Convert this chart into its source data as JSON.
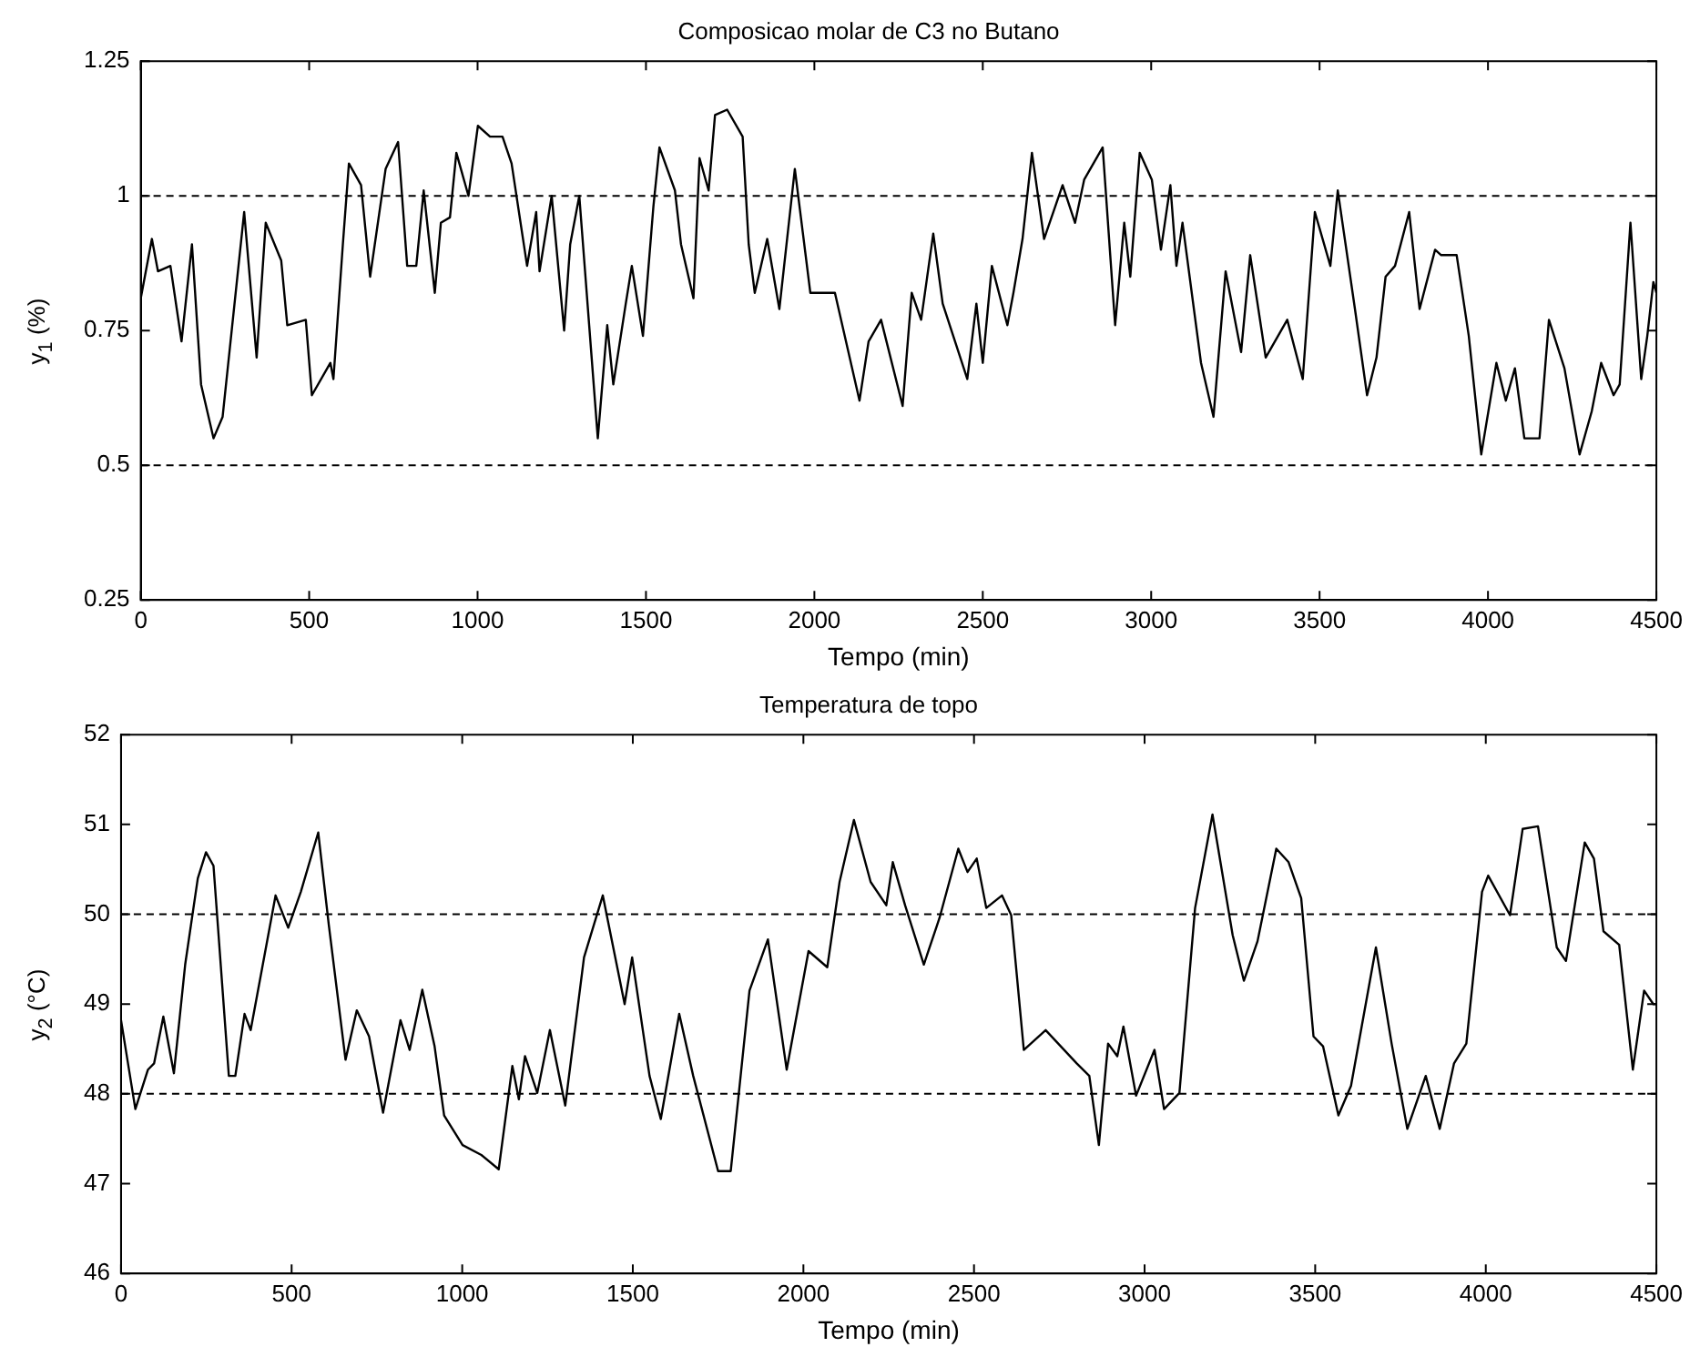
{
  "chart_data": [
    {
      "type": "line",
      "title": "Composicao molar de C3 no Butano",
      "xlabel": "Tempo (min)",
      "ylabel": "y$_{1}$ (%)",
      "xlim": [
        0,
        4500
      ],
      "xticks": [
        0,
        500,
        1000,
        1500,
        2000,
        2500,
        3000,
        3500,
        4000,
        4500
      ],
      "ylim": [
        0.25,
        1.25
      ],
      "yticks": [
        0.25,
        0.5,
        0.75,
        1,
        1.25
      ],
      "grid": false,
      "legend": false,
      "marker": "none",
      "line_style": "solid",
      "ref_lines": [
        {
          "axis": "y",
          "value": 1,
          "line_style": "dashed",
          "color": "#000000"
        },
        {
          "axis": "y",
          "value": 0.5,
          "line_style": "dashed",
          "color": "#000000"
        }
      ],
      "series": [
        {
          "color": "#000000",
          "x": [
            0,
            33,
            51,
            88,
            121,
            152,
            179,
            216,
            243,
            307,
            344,
            371,
            417,
            435,
            490,
            508,
            563,
            572,
            600,
            618,
            654,
            681,
            727,
            764,
            791,
            818,
            840,
            873,
            891,
            918,
            937,
            973,
            1001,
            1037,
            1074,
            1101,
            1147,
            1174,
            1184,
            1220,
            1257,
            1275,
            1302,
            1357,
            1385,
            1403,
            1440,
            1458,
            1491,
            1522,
            1540,
            1586,
            1604,
            1641,
            1659,
            1686,
            1705,
            1741,
            1787,
            1805,
            1823,
            1860,
            1896,
            1942,
            1988,
            2061,
            2134,
            2161,
            2198,
            2262,
            2289,
            2317,
            2353,
            2381,
            2454,
            2481,
            2500,
            2527,
            2573,
            2591,
            2618,
            2646,
            2682,
            2737,
            2774,
            2801,
            2856,
            2893,
            2920,
            2938,
            2966,
            3002,
            3029,
            3057,
            3075,
            3093,
            3148,
            3185,
            3221,
            3267,
            3294,
            3340,
            3404,
            3450,
            3486,
            3532,
            3554,
            3605,
            3641,
            3669,
            3696,
            3724,
            3766,
            3797,
            3843,
            3861,
            3907,
            3943,
            3980,
            4025,
            4053,
            4080,
            4108,
            4153,
            4181,
            4227,
            4272,
            4308,
            4336,
            4373,
            4391,
            4423,
            4455,
            4473,
            4491,
            4500
          ],
          "values": [
            0.81,
            0.92,
            0.86,
            0.87,
            0.73,
            0.91,
            0.65,
            0.55,
            0.59,
            0.97,
            0.7,
            0.95,
            0.88,
            0.76,
            0.77,
            0.63,
            0.69,
            0.66,
            0.91,
            1.06,
            1.02,
            0.85,
            1.05,
            1.1,
            0.87,
            0.87,
            1.01,
            0.82,
            0.95,
            0.96,
            1.08,
            1.0,
            1.13,
            1.11,
            1.11,
            1.06,
            0.87,
            0.97,
            0.86,
            1.0,
            0.75,
            0.91,
            1.0,
            0.55,
            0.76,
            0.65,
            0.8,
            0.87,
            0.74,
            0.98,
            1.09,
            1.01,
            0.91,
            0.81,
            1.07,
            1.01,
            1.15,
            1.16,
            1.11,
            0.91,
            0.82,
            0.92,
            0.79,
            1.05,
            0.82,
            0.82,
            0.62,
            0.73,
            0.77,
            0.61,
            0.82,
            0.77,
            0.93,
            0.8,
            0.66,
            0.8,
            0.69,
            0.87,
            0.76,
            0.82,
            0.92,
            1.08,
            0.92,
            1.02,
            0.95,
            1.03,
            1.09,
            0.76,
            0.95,
            0.85,
            1.08,
            1.03,
            0.9,
            1.02,
            0.87,
            0.95,
            0.69,
            0.59,
            0.86,
            0.71,
            0.89,
            0.7,
            0.77,
            0.66,
            0.97,
            0.87,
            1.01,
            0.79,
            0.63,
            0.7,
            0.85,
            0.87,
            0.97,
            0.79,
            0.9,
            0.89,
            0.89,
            0.74,
            0.52,
            0.69,
            0.62,
            0.68,
            0.55,
            0.55,
            0.77,
            0.68,
            0.52,
            0.6,
            0.69,
            0.63,
            0.65,
            0.95,
            0.66,
            0.74,
            0.84,
            0.82
          ]
        }
      ]
    },
    {
      "type": "line",
      "title": "Temperatura de topo",
      "xlabel": "Tempo (min)",
      "ylabel": "y$_{2}$ (°C)",
      "xlim": [
        0,
        4500
      ],
      "xticks": [
        0,
        500,
        1000,
        1500,
        2000,
        2500,
        3000,
        3500,
        4000,
        4500
      ],
      "ylim": [
        46,
        52
      ],
      "yticks": [
        46,
        47,
        48,
        49,
        50,
        51,
        52
      ],
      "grid": false,
      "legend": false,
      "marker": "none",
      "line_style": "solid",
      "ref_lines": [
        {
          "axis": "y",
          "value": 50,
          "line_style": "dashed",
          "color": "#000000"
        },
        {
          "axis": "y",
          "value": 48,
          "line_style": "dashed",
          "color": "#000000"
        }
      ],
      "series": [
        {
          "color": "#000000",
          "x": [
            0,
            42,
            79,
            97,
            124,
            155,
            188,
            225,
            249,
            271,
            316,
            335,
            362,
            380,
            453,
            490,
            527,
            578,
            609,
            658,
            691,
            727,
            768,
            819,
            846,
            883,
            919,
            947,
            1001,
            1056,
            1107,
            1147,
            1166,
            1184,
            1220,
            1257,
            1302,
            1357,
            1412,
            1476,
            1498,
            1549,
            1582,
            1636,
            1677,
            1750,
            1787,
            1842,
            1896,
            1951,
            2015,
            2070,
            2106,
            2148,
            2197,
            2243,
            2262,
            2298,
            2353,
            2399,
            2454,
            2481,
            2508,
            2536,
            2582,
            2609,
            2646,
            2710,
            2801,
            2838,
            2866,
            2893,
            2920,
            2938,
            2975,
            3029,
            3057,
            3102,
            3148,
            3199,
            3258,
            3291,
            3331,
            3386,
            3422,
            3459,
            3495,
            3523,
            3568,
            3605,
            3678,
            3724,
            3770,
            3824,
            3865,
            3907,
            3943,
            3989,
            4007,
            4071,
            4108,
            4153,
            4208,
            4235,
            4290,
            4317,
            4345,
            4391,
            4431,
            4464,
            4491,
            4500
          ],
          "values": [
            48.82,
            47.83,
            48.27,
            48.34,
            48.86,
            48.23,
            49.44,
            50.4,
            50.69,
            50.54,
            48.2,
            48.2,
            48.89,
            48.71,
            50.21,
            49.85,
            50.25,
            50.91,
            49.88,
            48.38,
            48.93,
            48.64,
            47.79,
            48.82,
            48.49,
            49.16,
            48.53,
            47.76,
            47.43,
            47.32,
            47.16,
            48.31,
            47.94,
            48.42,
            48.01,
            48.71,
            47.87,
            49.52,
            50.21,
            49.0,
            49.52,
            48.2,
            47.72,
            48.89,
            48.2,
            47.14,
            47.14,
            49.15,
            49.72,
            48.27,
            49.59,
            49.41,
            50.36,
            51.05,
            50.36,
            50.1,
            50.58,
            50.1,
            49.44,
            49.96,
            50.73,
            50.47,
            50.62,
            50.07,
            50.21,
            49.99,
            48.49,
            48.71,
            48.34,
            48.2,
            47.43,
            48.56,
            48.42,
            48.75,
            47.98,
            48.49,
            47.83,
            48.01,
            50.07,
            51.11,
            49.77,
            49.26,
            49.7,
            50.73,
            50.58,
            50.18,
            48.64,
            48.53,
            47.76,
            48.09,
            49.63,
            48.56,
            47.61,
            48.2,
            47.61,
            48.34,
            48.56,
            50.25,
            50.43,
            49.99,
            50.95,
            50.98,
            49.63,
            49.48,
            50.8,
            50.62,
            49.81,
            49.66,
            48.27,
            49.15,
            49.0,
            49.0
          ]
        }
      ]
    }
  ]
}
